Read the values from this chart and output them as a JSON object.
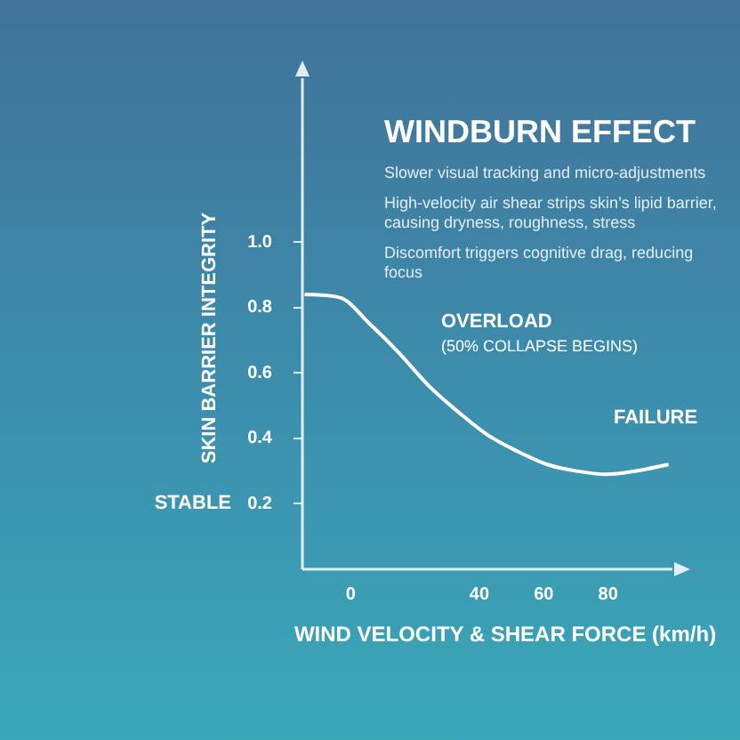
{
  "chart_data": {
    "type": "line",
    "title": "WINDBURN EFFECT",
    "xlabel": "WIND VELOCITY & SHEAR FORCE (km/h)",
    "ylabel": "SKIN BARRIER INTEGRITY",
    "x": [
      -14.3,
      -3.3,
      5.9,
      15.1,
      24.3,
      33.5,
      42.6,
      51.9,
      61.1,
      70.2,
      79.4,
      88.7,
      98.8
    ],
    "series": [
      {
        "color": "#ffffff",
        "values": [
          0.84,
          0.83,
          0.75,
          0.66,
          0.56,
          0.48,
          0.41,
          0.36,
          0.32,
          0.3,
          0.29,
          0.3,
          0.32
        ]
      }
    ],
    "xlim": [
      -15,
      100
    ],
    "xticks": [
      0,
      40,
      60,
      80
    ],
    "ylim": [
      0,
      1.5
    ],
    "yticks": [
      {
        "value": 0.2,
        "label": "0.2"
      },
      {
        "value": 0.4,
        "label": "0.4"
      },
      {
        "value": 0.6,
        "label": "0.6"
      },
      {
        "value": 0.8,
        "label": "0.8"
      },
      {
        "value": 1.0,
        "label": "1.0"
      }
    ],
    "marker": "none",
    "line_style": "solid",
    "annotations": [
      "Slower visual tracking and micro-adjustments",
      "High-velocity air shear strips skin’s lipid barrier, causing dryness, roughness, stress",
      "Discomfort triggers cognitive drag, reducing focus",
      "OVERLOAD",
      "(50% COLLAPSE BEGINS)",
      "FAILURE",
      "STABLE"
    ]
  }
}
